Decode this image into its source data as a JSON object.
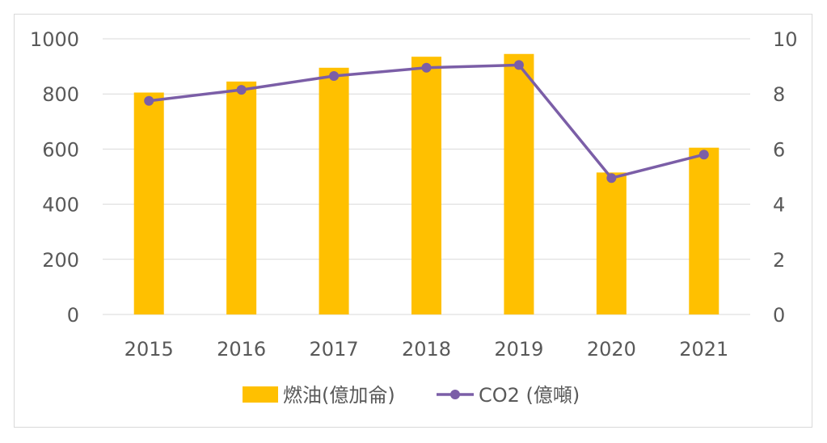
{
  "chart_data": {
    "type": "bar+line",
    "categories": [
      "2015",
      "2016",
      "2017",
      "2018",
      "2019",
      "2020",
      "2021"
    ],
    "series": [
      {
        "name": "燃油(億加侖)",
        "type": "bar",
        "axis": "left",
        "color": "#FFC000",
        "values": [
          805,
          845,
          895,
          935,
          945,
          515,
          605
        ]
      },
      {
        "name": "CO2 (億噸)",
        "type": "line",
        "axis": "right",
        "color": "#7B5EA7",
        "values": [
          7.75,
          8.15,
          8.65,
          8.95,
          9.05,
          4.95,
          5.8
        ]
      }
    ],
    "y_left": {
      "min": 0,
      "max": 1000,
      "ticks": [
        "0",
        "200",
        "400",
        "600",
        "800",
        "1000"
      ]
    },
    "y_right": {
      "min": 0,
      "max": 10,
      "ticks": [
        "0",
        "2",
        "4",
        "6",
        "8",
        "10"
      ]
    },
    "grid": true,
    "legend_position": "bottom"
  }
}
